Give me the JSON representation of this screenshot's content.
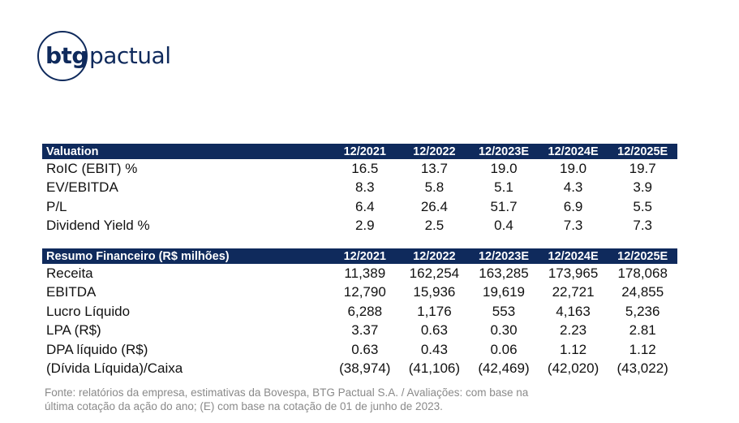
{
  "logo": {
    "bold": "btg",
    "light": "pactual"
  },
  "valuation": {
    "header": "Valuation",
    "columns": [
      "12/2021",
      "12/2022",
      "12/2023E",
      "12/2024E",
      "12/2025E"
    ],
    "rows": [
      {
        "label": "RoIC (EBIT) %",
        "values": [
          "16.5",
          "13.7",
          "19.0",
          "19.0",
          "19.7"
        ]
      },
      {
        "label": "EV/EBITDA",
        "values": [
          "8.3",
          "5.8",
          "5.1",
          "4.3",
          "3.9"
        ]
      },
      {
        "label": "P/L",
        "values": [
          "6.4",
          "26.4",
          "51.7",
          "6.9",
          "5.5"
        ]
      },
      {
        "label": "Dividend Yield %",
        "values": [
          "2.9",
          "2.5",
          "0.4",
          "7.3",
          "7.3"
        ]
      }
    ]
  },
  "financial": {
    "header": "Resumo Financeiro (R$ milhões)",
    "columns": [
      "12/2021",
      "12/2022",
      "12/2023E",
      "12/2024E",
      "12/2025E"
    ],
    "rows": [
      {
        "label": "Receita",
        "values": [
          "11,389",
          "162,254",
          "163,285",
          "173,965",
          "178,068"
        ]
      },
      {
        "label": "EBITDA",
        "values": [
          "12,790",
          "15,936",
          "19,619",
          "22,721",
          "24,855"
        ]
      },
      {
        "label": "Lucro Líquido",
        "values": [
          "6,288",
          "1,176",
          "553",
          "4,163",
          "5,236"
        ]
      },
      {
        "label": "LPA (R$)",
        "values": [
          "3.37",
          "0.63",
          "0.30",
          "2.23",
          "2.81"
        ]
      },
      {
        "label": "DPA líquido (R$)",
        "values": [
          "0.63",
          "0.43",
          "0.06",
          "1.12",
          "1.12"
        ]
      },
      {
        "label": "(Dívida Líquida)/Caixa",
        "values": [
          "(38,974)",
          "(41,106)",
          "(42,469)",
          "(42,020)",
          "(43,022)"
        ]
      }
    ]
  },
  "source": {
    "line1": "Fonte: relatórios da empresa, estimativas da Bovespa, BTG Pactual S.A. / Avaliações: com base na",
    "line2": "última cotação da ação do ano; (E) com base na cotação de 01 de junho de 2023."
  },
  "colors": {
    "header_bg": "#0f2a5c",
    "header_text": "#ffffff",
    "source_text": "#8a8a8a"
  }
}
